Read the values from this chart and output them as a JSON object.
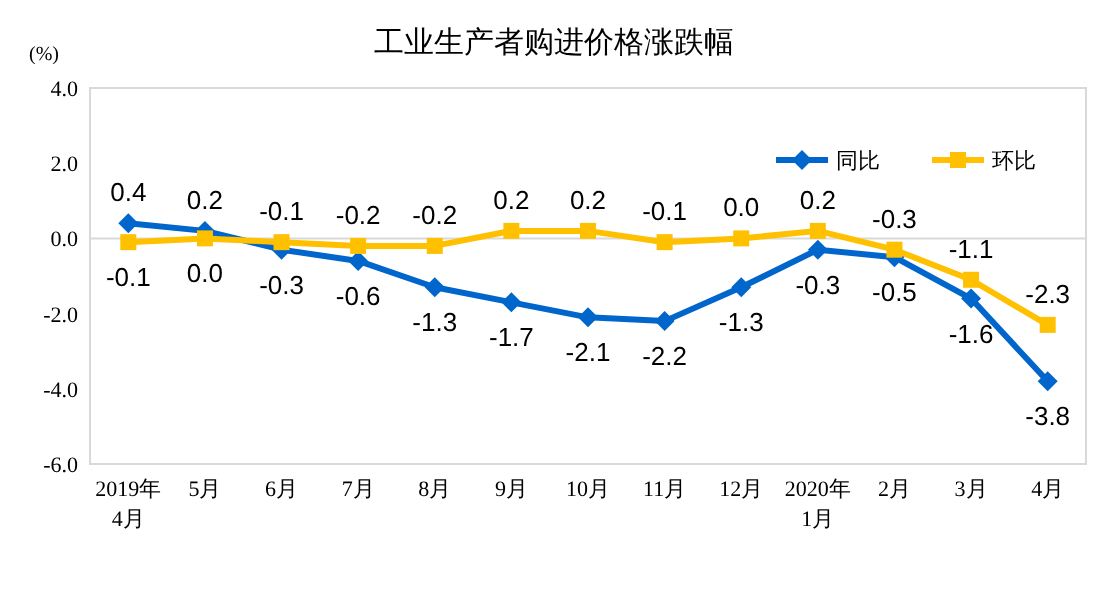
{
  "chart_data": {
    "type": "line",
    "title": "工业生产者购进价格涨跌幅",
    "ylabel": "(%)",
    "categories": [
      "2019年4月",
      "5月",
      "6月",
      "7月",
      "8月",
      "9月",
      "10月",
      "11月",
      "12月",
      "2020年1月",
      "2月",
      "3月",
      "4月"
    ],
    "series": [
      {
        "name": "同比",
        "color": "#0066cc",
        "marker": "diamond",
        "values": [
          0.4,
          0.2,
          -0.3,
          -0.6,
          -1.3,
          -1.7,
          -2.1,
          -2.2,
          -1.3,
          -0.3,
          -0.5,
          -1.6,
          -3.8
        ],
        "value_labels": [
          "0.4",
          "0.2",
          "-0.3",
          "-0.6",
          "-1.3",
          "-1.7",
          "-2.1",
          "-2.2",
          "-1.3",
          "-0.3",
          "-0.5",
          "-1.6",
          "-3.8"
        ]
      },
      {
        "name": "环比",
        "color": "#ffc000",
        "marker": "square",
        "values": [
          -0.1,
          0.0,
          -0.1,
          -0.2,
          -0.2,
          0.2,
          0.2,
          -0.1,
          0.0,
          0.2,
          -0.3,
          -1.1,
          -2.3
        ],
        "value_labels": [
          "-0.1",
          "0.0",
          "-0.1",
          "-0.2",
          "-0.2",
          "0.2",
          "0.2",
          "-0.1",
          "0.0",
          "0.2",
          "-0.3",
          "-1.1",
          "-2.3"
        ]
      }
    ],
    "ylim": [
      -6,
      4
    ],
    "yticks": [
      {
        "value": -6,
        "label": "-6.0"
      },
      {
        "value": -4,
        "label": "-4.0"
      },
      {
        "value": -2,
        "label": "-2.0"
      },
      {
        "value": 0,
        "label": "0.0"
      },
      {
        "value": 2,
        "label": "2.0"
      },
      {
        "value": 4,
        "label": "4.0"
      }
    ],
    "legend": "top right"
  }
}
